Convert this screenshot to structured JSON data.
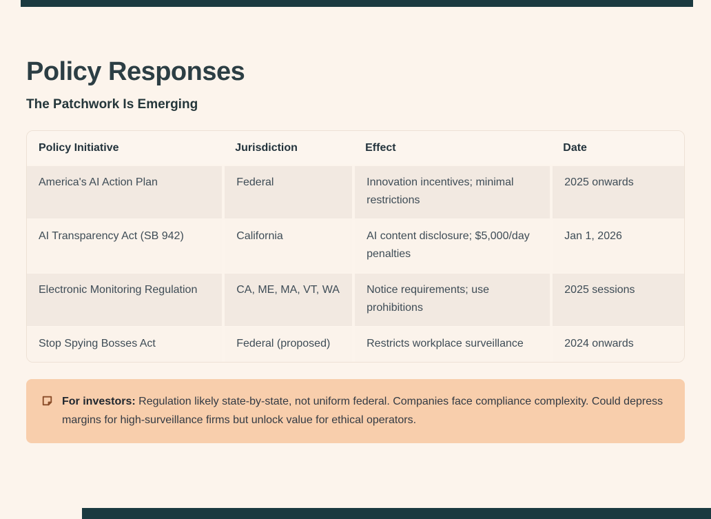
{
  "page": {
    "title": "Policy Responses",
    "subtitle": "The Patchwork Is Emerging"
  },
  "table": {
    "columns": [
      "Policy Initiative",
      "Jurisdiction",
      "Effect",
      "Date"
    ],
    "rows": [
      [
        "America's AI Action Plan",
        "Federal",
        "Innovation incentives; minimal restrictions",
        "2025 onwards"
      ],
      [
        "AI Transparency Act (SB 942)",
        "California",
        "AI content disclosure; $5,000/day penalties",
        "Jan 1, 2026"
      ],
      [
        "Electronic Monitoring Regulation",
        "CA, ME, MA, VT, WA",
        "Notice requirements; use prohibitions",
        "2025 sessions"
      ],
      [
        "Stop Spying Bosses Act",
        "Federal (proposed)",
        "Restricts workplace surveillance",
        "2024 onwards"
      ]
    ]
  },
  "callout": {
    "label": "For investors:",
    "text": "Regulation likely state-by-state, not uniform federal. Companies face compliance complexity. Could depress margins for high-surveillance firms but unlock value for ethical operators.",
    "icon": "note-icon"
  },
  "colors": {
    "page_background": "#FCF4EC",
    "accent_bar": "#1B3A40",
    "heading_text": "#2C3E44",
    "row_alt_background": "#F2E9E1",
    "row_background": "#FBF3EB",
    "callout_background": "#F8CEAC",
    "callout_icon": "#8A4C28"
  }
}
